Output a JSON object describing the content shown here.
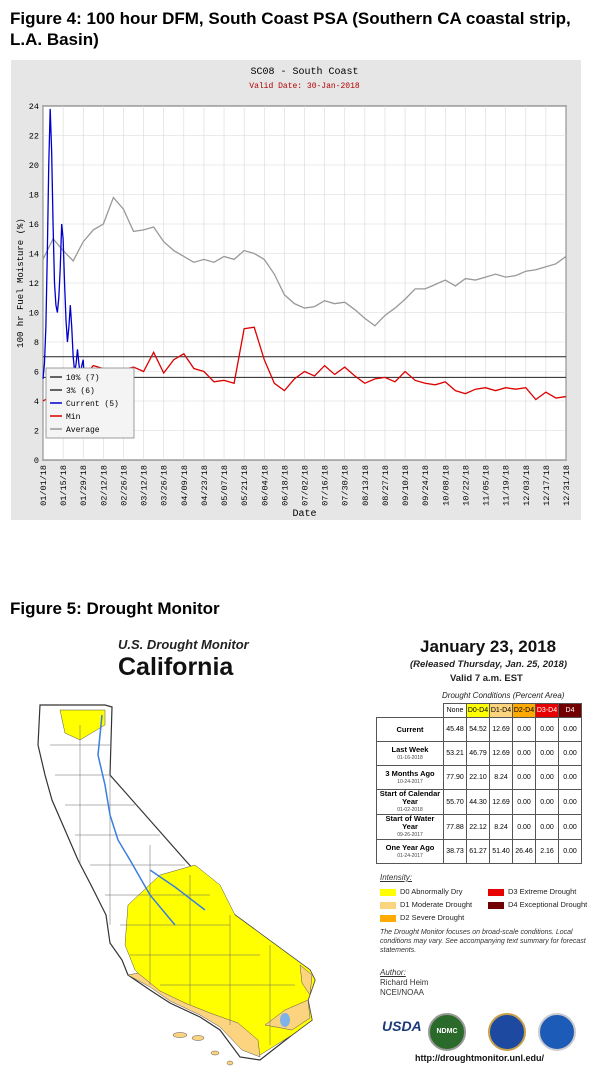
{
  "figure4": {
    "heading": "Figure 4:  100 hour DFM, South Coast PSA (Southern CA coastal strip, L.A. Basin)"
  },
  "figure5": {
    "heading": "Figure 5:  Drought Monitor"
  },
  "chart_data": {
    "type": "line",
    "title": "SC08 - South Coast",
    "subtitle": "Valid Date: 30-Jan-2018",
    "xlabel": "Date",
    "ylabel": "100 hr Fuel Moisture (%)",
    "ylim": [
      0,
      24
    ],
    "yticks": [
      0,
      2,
      4,
      6,
      8,
      10,
      12,
      14,
      16,
      18,
      20,
      22,
      24
    ],
    "grid": true,
    "legend_position": "bottom-left",
    "xticks": [
      "01/01/18",
      "01/15/18",
      "01/29/18",
      "02/12/18",
      "02/26/18",
      "03/12/18",
      "03/26/18",
      "04/09/18",
      "04/23/18",
      "05/07/18",
      "05/21/18",
      "06/04/18",
      "06/18/18",
      "07/02/18",
      "07/16/18",
      "07/30/18",
      "08/13/18",
      "08/27/18",
      "09/10/18",
      "09/24/18",
      "10/08/18",
      "10/22/18",
      "11/05/18",
      "11/19/18",
      "12/03/18",
      "12/17/18",
      "12/31/18"
    ],
    "thresholds": [
      {
        "name": "10% (7)",
        "value": 7
      },
      {
        "name": "3% (6)",
        "value": 5.6
      }
    ],
    "series": [
      {
        "name": "Current (5)",
        "color": "#0000cc",
        "x": [
          0,
          1,
          2,
          3,
          4,
          5,
          6,
          7,
          8,
          9,
          10,
          11,
          12,
          13,
          14,
          15,
          16,
          17,
          18,
          19,
          20,
          21,
          22,
          23,
          24,
          25,
          26,
          27,
          28,
          29
        ],
        "values": [
          5.5,
          6.5,
          9,
          14,
          20,
          23.8,
          21,
          16,
          12,
          10.5,
          10,
          11,
          13,
          16,
          15,
          12,
          9.5,
          8,
          9,
          10.5,
          9,
          7,
          6,
          6.5,
          7.5,
          6.5,
          5.8,
          6.4,
          6.8,
          5
        ]
      },
      {
        "name": "Min",
        "color": "#dd0000",
        "x": [
          0,
          7,
          14,
          21,
          28,
          35,
          42,
          49,
          56,
          63,
          70,
          77,
          84,
          91,
          98,
          105,
          112,
          119,
          126,
          133,
          140,
          147,
          154,
          161,
          168,
          175,
          182,
          189,
          196,
          203,
          210,
          217,
          224,
          231,
          238,
          245,
          252,
          259,
          266,
          273,
          280,
          287,
          294,
          301,
          308,
          315,
          322,
          329,
          336,
          343,
          350,
          357,
          364
        ],
        "values": [
          4,
          4.4,
          5,
          5.3,
          5.6,
          6.4,
          6.2,
          5.7,
          6.1,
          6.3,
          6,
          7.3,
          5.9,
          6.8,
          7.2,
          6.2,
          6,
          5.3,
          5.4,
          5.2,
          8.9,
          9,
          6.8,
          5.2,
          4.7,
          5.5,
          6,
          5.7,
          6.4,
          5.8,
          6.3,
          5.7,
          5.2,
          5.5,
          5.6,
          5.3,
          6,
          5.4,
          5.2,
          5.1,
          5.3,
          4.7,
          4.5,
          4.8,
          4.9,
          4.7,
          4.9,
          4.8,
          4.9,
          4.1,
          4.6,
          4.2,
          4.3
        ]
      },
      {
        "name": "Average",
        "color": "#999999",
        "x": [
          0,
          7,
          14,
          21,
          28,
          35,
          42,
          49,
          56,
          63,
          70,
          77,
          84,
          91,
          98,
          105,
          112,
          119,
          126,
          133,
          140,
          147,
          154,
          161,
          168,
          175,
          182,
          189,
          196,
          203,
          210,
          217,
          224,
          231,
          238,
          245,
          252,
          259,
          266,
          273,
          280,
          287,
          294,
          301,
          308,
          315,
          322,
          329,
          336,
          343,
          350,
          357,
          364
        ],
        "values": [
          13.6,
          15,
          14.2,
          13.5,
          14.8,
          15.6,
          16,
          17.8,
          17,
          15.5,
          15.6,
          15.8,
          14.8,
          14.2,
          13.8,
          13.4,
          13.6,
          13.4,
          13.8,
          13.6,
          14.2,
          14,
          13.6,
          12.6,
          11.2,
          10.6,
          10.3,
          10.4,
          10.8,
          10.6,
          10.7,
          10.2,
          9.6,
          9.1,
          9.8,
          10.3,
          10.9,
          11.6,
          11.6,
          11.9,
          12.2,
          11.8,
          12.3,
          12.2,
          12.4,
          12.6,
          12.4,
          12.5,
          12.8,
          12.9,
          13.1,
          13.3,
          13.8
        ]
      }
    ]
  },
  "drought_monitor": {
    "header_line1": "U.S. Drought Monitor",
    "header_line2": "California",
    "date": "January 23, 2018",
    "released": "(Released Thursday, Jan. 25, 2018)",
    "valid": "Valid 7 a.m. EST",
    "conditions_title": "Drought Conditions (Percent Area)",
    "columns": [
      "None",
      "D0-D4",
      "D1-D4",
      "D2-D4",
      "D3-D4",
      "D4"
    ],
    "column_colors": [
      "#ffffff",
      "#ffff00",
      "#fcd37f",
      "#ffaa00",
      "#e60000",
      "#730000"
    ],
    "rows": [
      {
        "label": "Current",
        "sub": "",
        "values": [
          "45.48",
          "54.52",
          "12.69",
          "0.00",
          "0.00",
          "0.00"
        ]
      },
      {
        "label": "Last Week",
        "sub": "01-16-2018",
        "values": [
          "53.21",
          "46.79",
          "12.69",
          "0.00",
          "0.00",
          "0.00"
        ]
      },
      {
        "label": "3 Months Ago",
        "sub": "10-24-2017",
        "values": [
          "77.90",
          "22.10",
          "8.24",
          "0.00",
          "0.00",
          "0.00"
        ]
      },
      {
        "label": "Start of Calendar Year",
        "sub": "01-02-2018",
        "values": [
          "55.70",
          "44.30",
          "12.69",
          "0.00",
          "0.00",
          "0.00"
        ]
      },
      {
        "label": "Start of Water Year",
        "sub": "09-26-2017",
        "values": [
          "77.88",
          "22.12",
          "8.24",
          "0.00",
          "0.00",
          "0.00"
        ]
      },
      {
        "label": "One Year Ago",
        "sub": "01-24-2017",
        "values": [
          "38.73",
          "61.27",
          "51.40",
          "26.46",
          "2.16",
          "0.00"
        ]
      }
    ],
    "intensity_title": "Intensity:",
    "legend": [
      {
        "label": "D0 Abnormally Dry",
        "color": "#ffff00"
      },
      {
        "label": "D1 Moderate Drought",
        "color": "#fcd37f"
      },
      {
        "label": "D2 Severe Drought",
        "color": "#ffaa00"
      },
      {
        "label": "D3 Extreme Drought",
        "color": "#e60000"
      },
      {
        "label": "D4 Exceptional Drought",
        "color": "#730000"
      }
    ],
    "note": "The Drought Monitor focuses on broad-scale conditions. Local conditions may vary. See accompanying text summary for forecast statements.",
    "author_label": "Author:",
    "author_name": "Richard Heim",
    "author_org": "NCEI/NOAA",
    "logos": {
      "usda": "USDA",
      "ndmc": "NDMC"
    },
    "url": "http://droughtmonitor.unl.edu/"
  }
}
